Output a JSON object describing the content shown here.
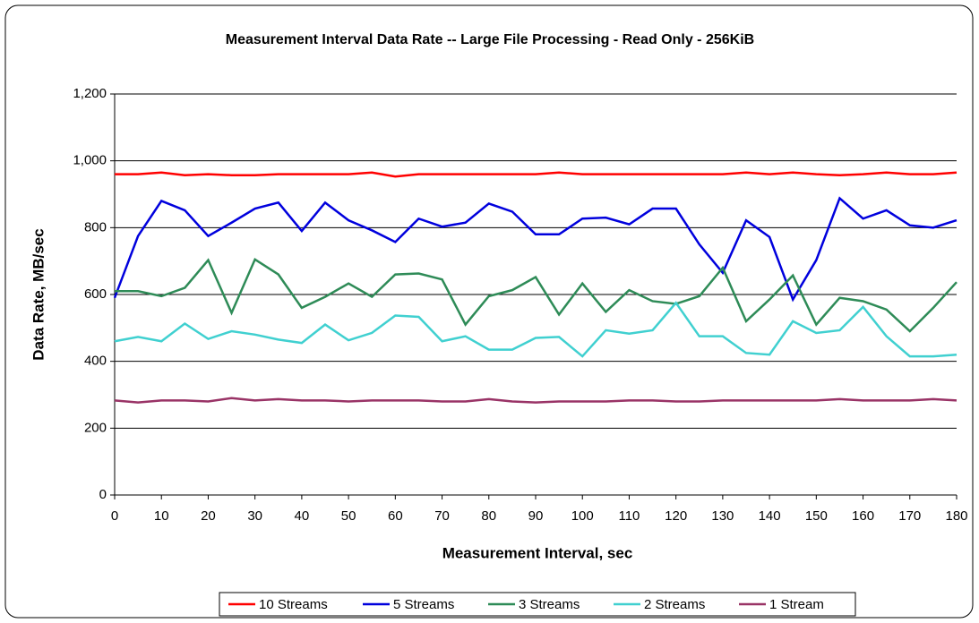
{
  "chart_data": {
    "type": "line",
    "title": "Measurement Interval Data Rate -- Large File Processing - Read Only - 256KiB",
    "x_label": "Measurement Interval, sec",
    "y_label": "Data Rate, MB/sec",
    "x": [
      0,
      5,
      10,
      15,
      20,
      25,
      30,
      35,
      40,
      45,
      50,
      55,
      60,
      65,
      70,
      75,
      80,
      85,
      90,
      95,
      100,
      105,
      110,
      115,
      120,
      125,
      130,
      135,
      140,
      145,
      150,
      155,
      160,
      165,
      170,
      175,
      180
    ],
    "xlim": [
      0,
      180
    ],
    "xticks": [
      0,
      10,
      20,
      30,
      40,
      50,
      60,
      70,
      80,
      90,
      100,
      110,
      120,
      130,
      140,
      150,
      160,
      170,
      180
    ],
    "ylim": [
      0,
      1200
    ],
    "yticks": [
      0,
      200,
      400,
      600,
      800,
      {
        "value": 1000,
        "label": "1,000"
      },
      {
        "value": 1200,
        "label": "1,200"
      }
    ],
    "grid": true,
    "legend": "bottom",
    "series": [
      {
        "name": "10 Streams",
        "color": "#ff0000",
        "values": [
          960,
          960,
          965,
          957,
          960,
          957,
          957,
          960,
          960,
          960,
          960,
          965,
          953,
          960,
          960,
          960,
          960,
          960,
          960,
          965,
          960,
          960,
          960,
          960,
          960,
          960,
          960,
          965,
          960,
          965,
          960,
          957,
          960,
          965,
          960,
          960,
          965
        ]
      },
      {
        "name": "5 Streams",
        "color": "#0000dd",
        "values": [
          590,
          775,
          880,
          852,
          775,
          815,
          857,
          875,
          790,
          875,
          822,
          792,
          757,
          827,
          803,
          815,
          872,
          848,
          780,
          780,
          827,
          830,
          810,
          857,
          857,
          750,
          665,
          822,
          772,
          585,
          703,
          888,
          827,
          852,
          807,
          800,
          822
        ]
      },
      {
        "name": "3 Streams",
        "color": "#2e8b57",
        "values": [
          610,
          610,
          595,
          620,
          703,
          545,
          705,
          660,
          560,
          593,
          633,
          593,
          660,
          663,
          645,
          510,
          595,
          613,
          652,
          540,
          633,
          548,
          613,
          580,
          572,
          595,
          680,
          520,
          585,
          657,
          510,
          590,
          580,
          555,
          490,
          560,
          637
        ]
      },
      {
        "name": "2 Streams",
        "color": "#40d0d0",
        "values": [
          460,
          473,
          460,
          513,
          467,
          490,
          480,
          465,
          455,
          510,
          463,
          485,
          537,
          533,
          460,
          475,
          435,
          435,
          470,
          473,
          415,
          493,
          483,
          493,
          575,
          475,
          475,
          425,
          420,
          520,
          485,
          493,
          563,
          475,
          415,
          415,
          420
        ]
      },
      {
        "name": "1 Stream",
        "color": "#993366",
        "values": [
          283,
          277,
          283,
          283,
          280,
          290,
          283,
          287,
          283,
          283,
          280,
          283,
          283,
          283,
          280,
          280,
          287,
          280,
          277,
          280,
          280,
          280,
          283,
          283,
          280,
          280,
          283,
          283,
          283,
          283,
          283,
          287,
          283,
          283,
          283,
          287,
          283
        ]
      }
    ]
  }
}
